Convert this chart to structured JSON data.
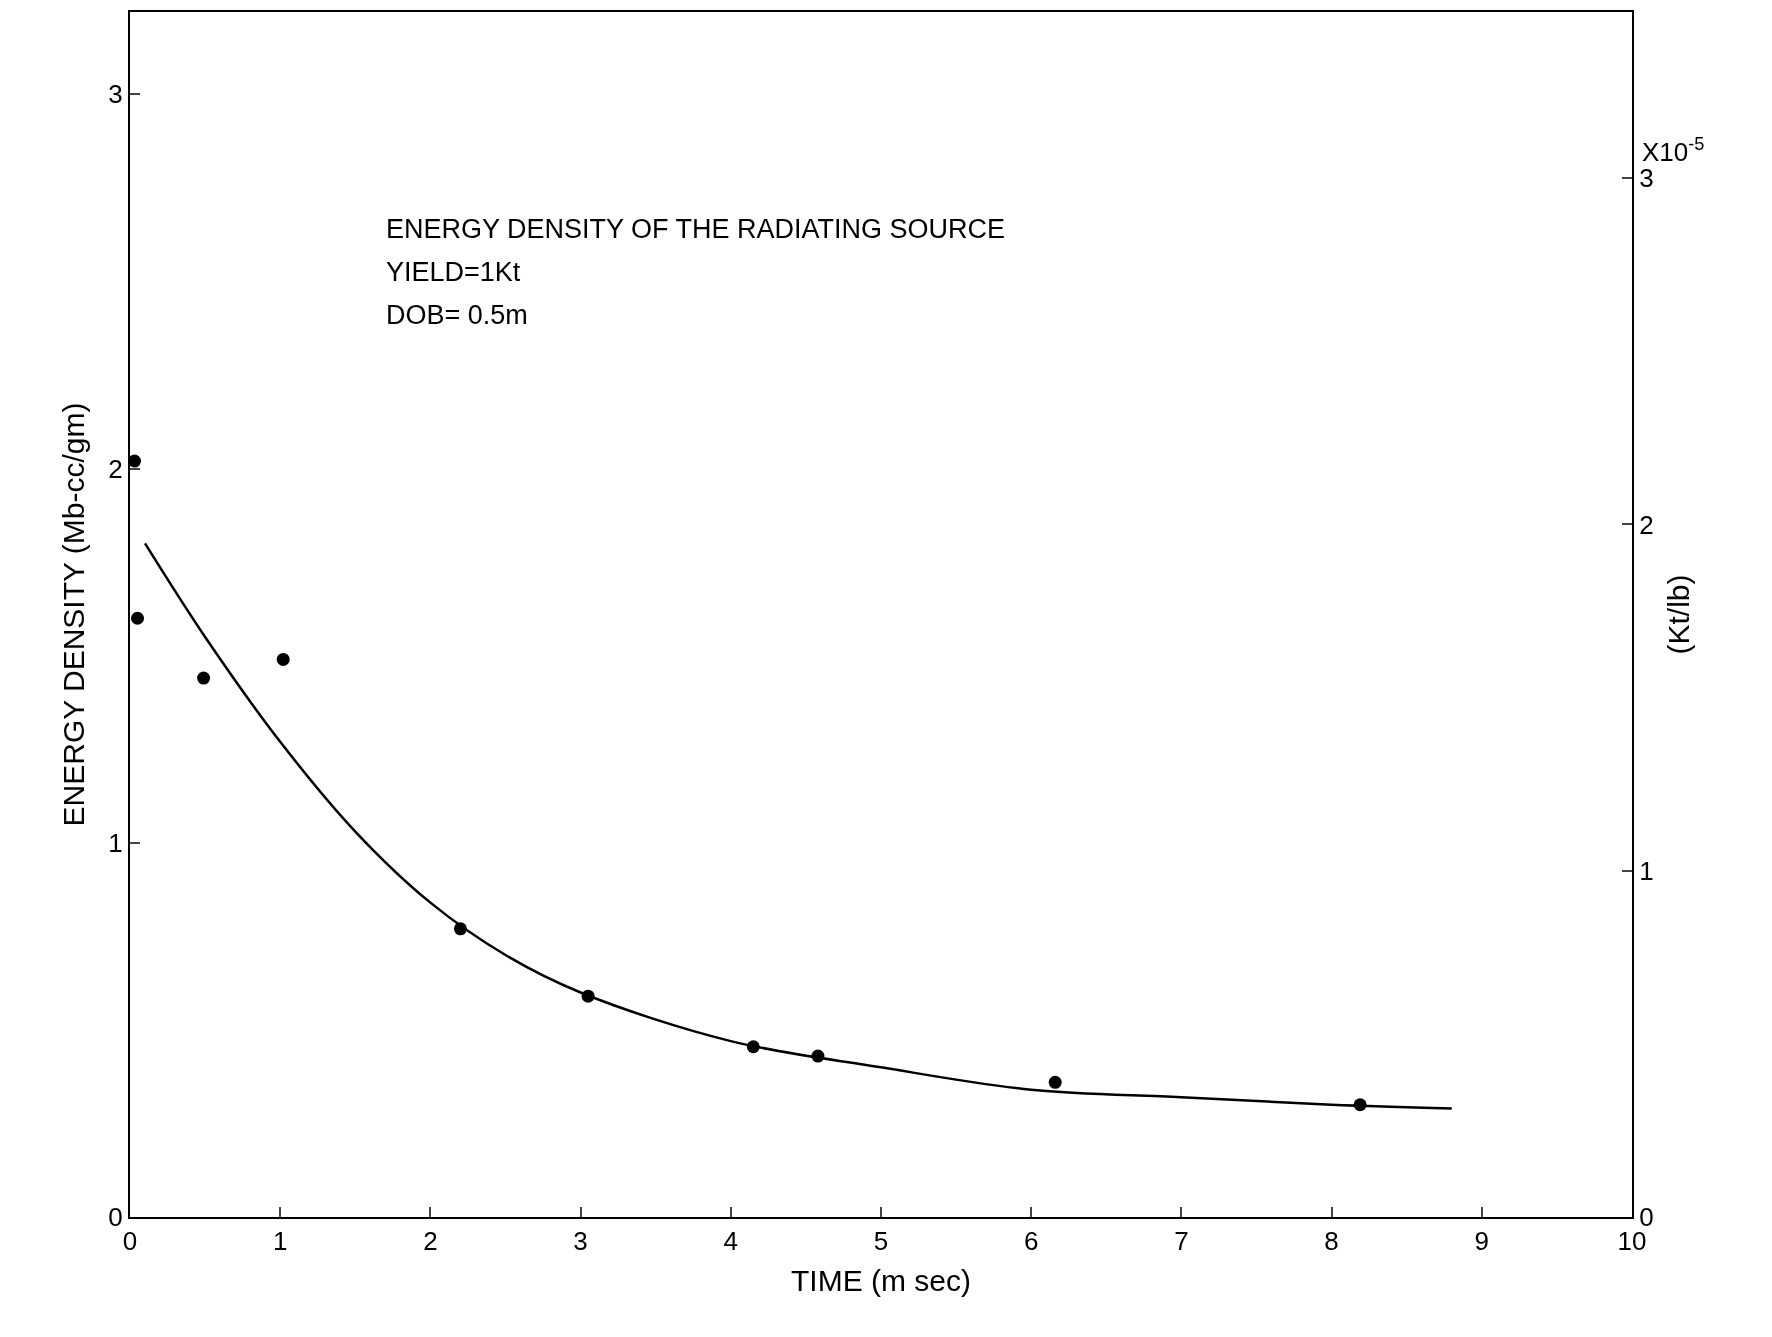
{
  "chart_data": {
    "type": "scatter",
    "xlabel": "TIME (m sec)",
    "ylabel": "ENERGY DENSITY (Mb-cc/gm)",
    "y2label": "(Kt/lb)",
    "annotations": [
      "ENERGY DENSITY OF THE RADIATING SOURCE",
      "YIELD=1Kt",
      "DOB= 0.5m",
      "X10$^{-5}$"
    ],
    "series": [
      {
        "color": "#000000",
        "marker": "circle",
        "x": [
          0.03,
          0.05,
          0.49,
          1.02,
          2.2,
          3.05,
          4.15,
          4.58,
          6.16,
          8.19
        ],
        "values": [
          2.02,
          1.6,
          1.44,
          1.49,
          0.77,
          0.59,
          0.455,
          0.43,
          0.36,
          0.3
        ]
      },
      {
        "type": "line",
        "color": "#000000",
        "marker": "none",
        "line_style": "solid",
        "x": [
          0.1,
          0.5,
          1,
          1.5,
          2,
          2.5,
          3,
          4,
          5,
          6,
          7,
          8,
          8.8
        ],
        "values": [
          1.8,
          1.55,
          1.27,
          1.03,
          0.84,
          0.7,
          0.6,
          0.47,
          0.4,
          0.34,
          0.32,
          0.3,
          0.29
        ]
      }
    ],
    "xlim": [
      0,
      10
    ],
    "xticks": [
      0,
      1,
      2,
      3,
      4,
      5,
      6,
      7,
      8,
      9,
      10
    ],
    "ylim": [
      0,
      3.22
    ],
    "yticks": [
      0,
      1,
      2,
      3
    ],
    "y2lim": [
      0,
      3.48
    ],
    "y2ticks": [
      0,
      1,
      2,
      3
    ]
  }
}
